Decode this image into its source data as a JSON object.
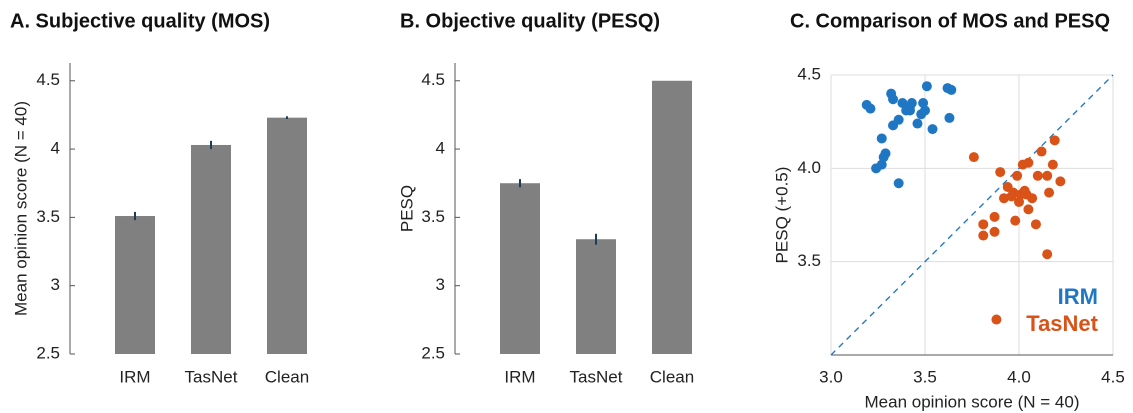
{
  "chart_data": [
    {
      "type": "bar",
      "title": "A. Subjective quality (MOS)",
      "y_label": "Mean opinion score (N = 40)",
      "categories": [
        "IRM",
        "TasNet",
        "Clean"
      ],
      "values": [
        3.51,
        4.03,
        4.23
      ],
      "errors": [
        0.03,
        0.03,
        0.01
      ],
      "color": "#808080",
      "error_color": "#1f3b5a",
      "ylim": [
        2.5,
        4.63
      ],
      "yticks": [
        2.5,
        3,
        3.5,
        4,
        4.5
      ]
    },
    {
      "type": "bar",
      "title": "B. Objective quality (PESQ)",
      "y_label": "PESQ",
      "categories": [
        "IRM",
        "TasNet",
        "Clean"
      ],
      "values": [
        3.75,
        3.34,
        4.5
      ],
      "errors": [
        0.03,
        0.04,
        0
      ],
      "color": "#808080",
      "error_color": "#1f3b5a",
      "ylim": [
        2.5,
        4.63
      ],
      "yticks": [
        2.5,
        3,
        3.5,
        4,
        4.5
      ]
    },
    {
      "type": "scatter",
      "title": "C. Comparison of MOS and PESQ",
      "x_label": "Mean opinion score (N = 40)",
      "y_label": "PESQ (+0.5)",
      "xlim": [
        3.0,
        4.5
      ],
      "ylim": [
        3.0,
        4.5
      ],
      "xticks": [
        {
          "value": 3,
          "label": "3.0"
        },
        3.5,
        {
          "value": 4,
          "label": "4.0"
        },
        4.5
      ],
      "yticks": [
        3.5,
        {
          "value": 4,
          "label": "4.0"
        },
        4.5
      ],
      "grid": true,
      "identity_line": true,
      "legend": "lower right",
      "series": [
        {
          "name": "IRM",
          "color": "#1f77c4",
          "x": [
            3.24,
            3.19,
            3.21,
            3.28,
            3.29,
            3.27,
            3.27,
            3.32,
            3.33,
            3.33,
            3.36,
            3.38,
            3.4,
            3.42,
            3.43,
            3.46,
            3.49,
            3.51,
            3.5,
            3.48,
            3.54,
            3.36,
            3.62,
            3.64,
            3.63,
            3.42
          ],
          "values": [
            4.0,
            4.34,
            4.32,
            4.06,
            4.08,
            4.02,
            4.16,
            4.4,
            4.37,
            4.23,
            4.26,
            4.35,
            4.31,
            4.33,
            4.35,
            4.24,
            4.35,
            4.44,
            4.31,
            4.29,
            4.21,
            3.92,
            4.43,
            4.42,
            4.27,
            4.31
          ]
        },
        {
          "name": "TasNet",
          "color": "#d95319",
          "x": [
            3.76,
            3.81,
            3.81,
            3.87,
            3.87,
            3.9,
            3.94,
            3.96,
            3.98,
            3.99,
            4.0,
            4.01,
            4.02,
            4.03,
            4.04,
            4.05,
            4.05,
            4.07,
            4.09,
            4.12,
            4.15,
            4.15,
            4.16,
            4.19,
            4.22,
            3.88,
            3.97,
            4.1,
            4.18,
            3.92
          ],
          "values": [
            4.06,
            3.7,
            3.64,
            3.66,
            3.74,
            3.98,
            3.9,
            3.85,
            3.72,
            3.96,
            3.82,
            3.86,
            4.02,
            3.88,
            3.86,
            3.78,
            4.03,
            3.84,
            3.7,
            4.09,
            3.96,
            3.54,
            3.87,
            4.15,
            3.93,
            3.19,
            3.87,
            3.96,
            4.02,
            3.84
          ]
        }
      ]
    }
  ]
}
